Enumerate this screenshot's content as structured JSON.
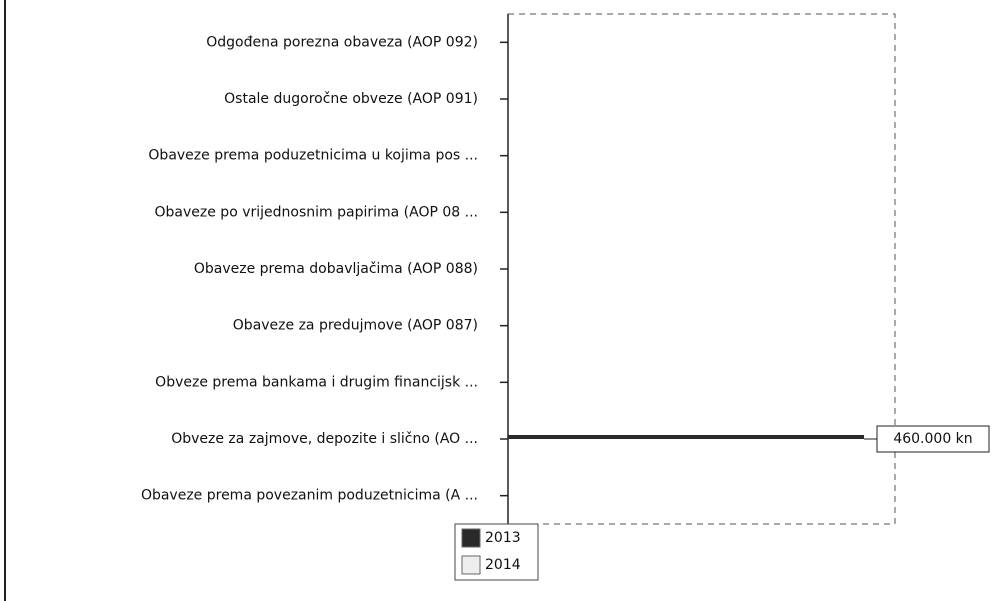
{
  "chart_data": {
    "type": "hbar",
    "categories": [
      "Odgođena porezna obaveza (AOP 092)",
      "Ostale dugoročne obveze (AOP 091)",
      "Obaveze prema poduzetnicima u kojima pos ...",
      "Obaveze po vrijednosnim papirima (AOP 08 ...",
      "Obaveze prema dobavljačima (AOP 088)",
      "Obaveze za predujmove (AOP 087)",
      "Obveze prema bankama i drugim financijsk ...",
      "Obveze za zajmove, depozite i slično (AO ...",
      "Obaveze prema povezanim poduzetnicima (A ..."
    ],
    "series": [
      {
        "name": "2013",
        "color": "#2a2a2a",
        "values": [
          null,
          null,
          null,
          null,
          null,
          null,
          null,
          460000,
          null
        ],
        "value_labels": [
          null,
          null,
          null,
          null,
          null,
          null,
          null,
          "460.000 kn",
          null
        ]
      },
      {
        "name": "2014",
        "color": "#eeeeee",
        "values": [
          null,
          null,
          null,
          null,
          null,
          null,
          null,
          null,
          null
        ]
      }
    ],
    "xlim": [
      0,
      500000
    ]
  }
}
